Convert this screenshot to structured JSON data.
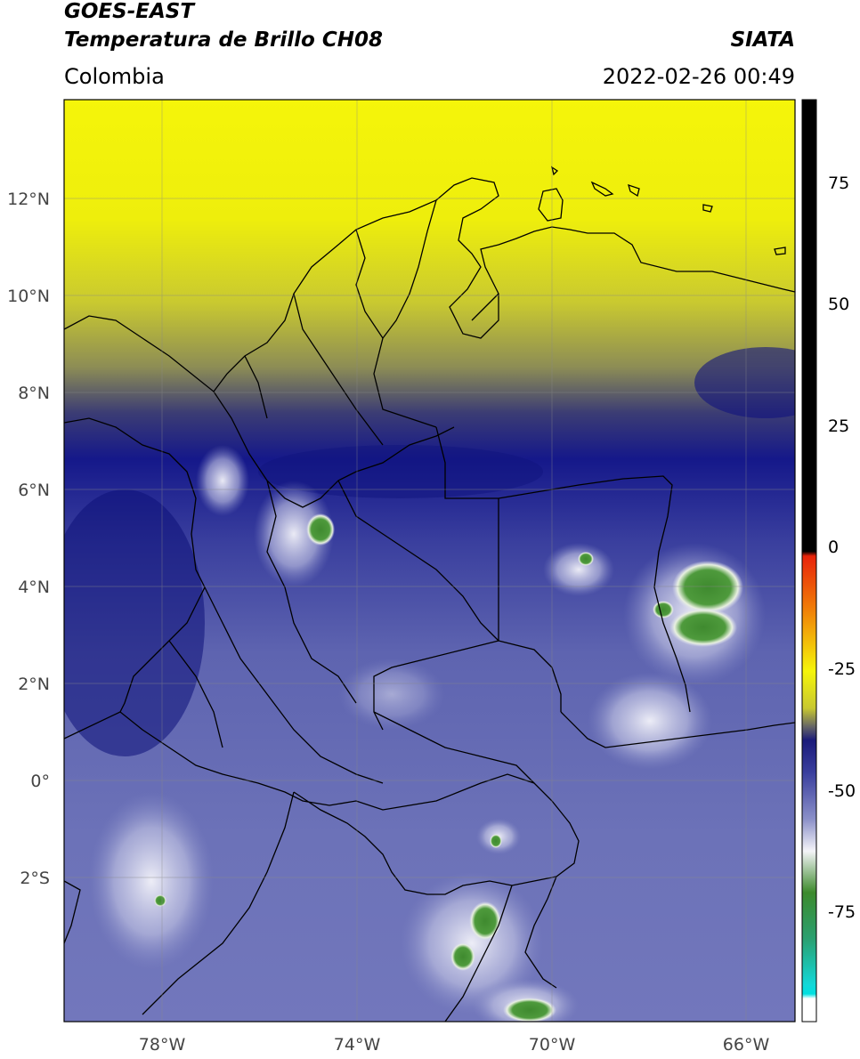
{
  "header": {
    "satellite": "GOES-EAST",
    "product": "Temperatura de Brillo CH08",
    "region": "Colombia",
    "source": "SIATA",
    "datetime": "2022-02-26 00:49"
  },
  "map": {
    "lon_range": [
      -80,
      -65
    ],
    "lat_range": [
      -5,
      14
    ],
    "lat_ticks": [
      "12°N",
      "10°N",
      "8°N",
      "6°N",
      "4°N",
      "2°N",
      "0°",
      "2°S"
    ],
    "lon_ticks": [
      "78°W",
      "74°W",
      "70°W",
      "66°W"
    ],
    "lat_tick_values": [
      12,
      10,
      8,
      6,
      4,
      2,
      0,
      -2
    ],
    "lon_tick_values": [
      -78,
      -74,
      -70,
      -66
    ]
  },
  "colorbar": {
    "range": [
      -95,
      90
    ],
    "tick_labels": [
      "75",
      "50",
      "25",
      "0",
      "-25",
      "-50",
      "-75"
    ],
    "tick_values": [
      75,
      50,
      25,
      0,
      -25,
      -50,
      -75
    ]
  },
  "colors": {
    "warm_yellow": "#f2f20a",
    "mid_navy": "#15188a",
    "cloud_periwinkle": "#6a6fb3",
    "cold_white": "#f2f2f8",
    "very_cold_green": "#2e8b2e",
    "colorbar_black": "#000000",
    "colorbar_red": "#e8230a"
  }
}
